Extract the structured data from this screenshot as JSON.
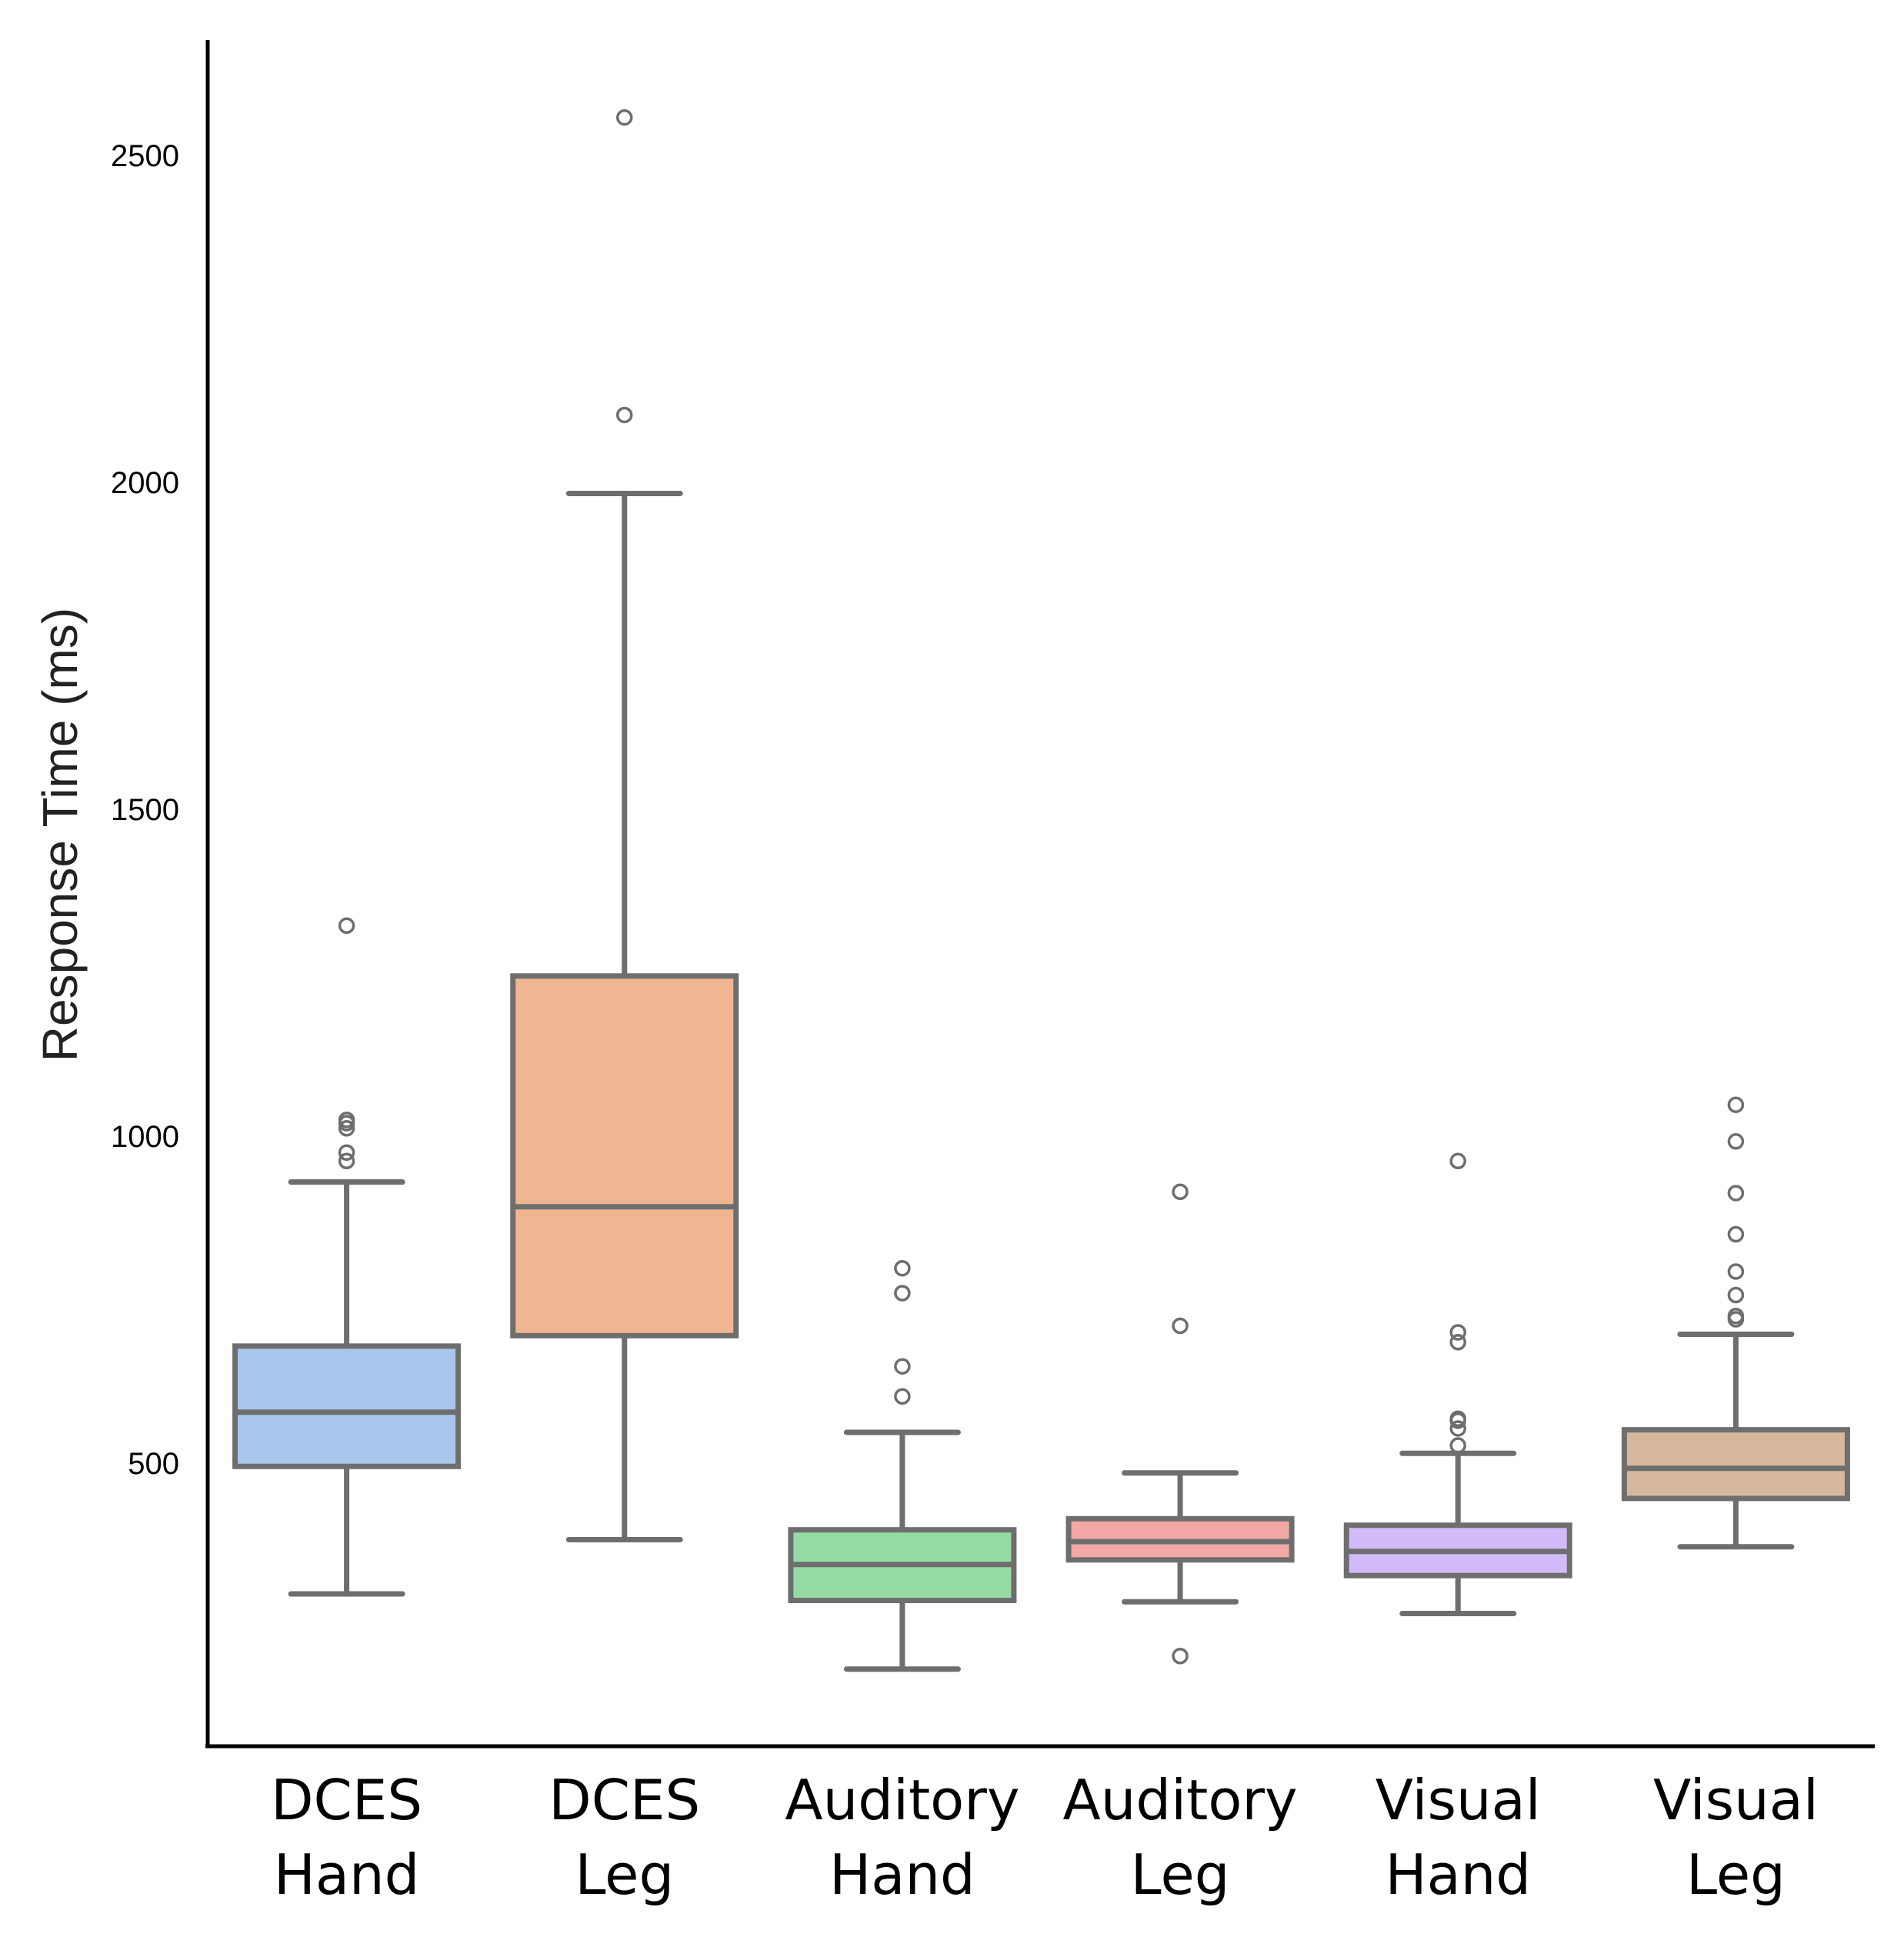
{
  "chart_data": {
    "type": "boxplot",
    "title": "",
    "xlabel": "",
    "ylabel": "Response Time (ms)",
    "ylim": [
      150,
      2720
    ],
    "yticks": [
      500,
      1000,
      1500,
      2000,
      2500
    ],
    "grid": false,
    "box_edge_color": "#6e6e6e",
    "categories": [
      {
        "label_line1": "DCES",
        "label_line2": "Hand",
        "color": "#a9c7ec",
        "whisker_low": 300,
        "q1": 495,
        "median": 578,
        "q3": 679,
        "whisker_high": 930,
        "outliers": [
          962,
          975,
          1012,
          1020,
          1025,
          1322
        ]
      },
      {
        "label_line1": "DCES",
        "label_line2": "Leg",
        "color": "#f0b692",
        "whisker_low": 383,
        "q1": 695,
        "median": 892,
        "q3": 1245,
        "whisker_high": 1983,
        "outliers": [
          2103,
          2558
        ]
      },
      {
        "label_line1": "Auditory",
        "label_line2": "Hand",
        "color": "#95dba6",
        "whisker_low": 185,
        "q1": 290,
        "median": 345,
        "q3": 398,
        "whisker_high": 547,
        "outliers": [
          602,
          648,
          760,
          798
        ]
      },
      {
        "label_line1": "Auditory",
        "label_line2": "Leg",
        "color": "#f4a8a5",
        "whisker_low": 288,
        "q1": 352,
        "median": 380,
        "q3": 415,
        "whisker_high": 485,
        "outliers": [
          205,
          710,
          915
        ]
      },
      {
        "label_line1": "Visual",
        "label_line2": "Hand",
        "color": "#d1baf7",
        "whisker_low": 270,
        "q1": 328,
        "median": 365,
        "q3": 405,
        "whisker_high": 515,
        "outliers": [
          527,
          553,
          565,
          568,
          685,
          700,
          962
        ]
      },
      {
        "label_line1": "Visual",
        "label_line2": "Leg",
        "color": "#d6b99c",
        "whisker_low": 372,
        "q1": 446,
        "median": 492,
        "q3": 551,
        "whisker_high": 697,
        "outliers": [
          720,
          725,
          757,
          793,
          850,
          913,
          992,
          1048
        ]
      }
    ]
  }
}
